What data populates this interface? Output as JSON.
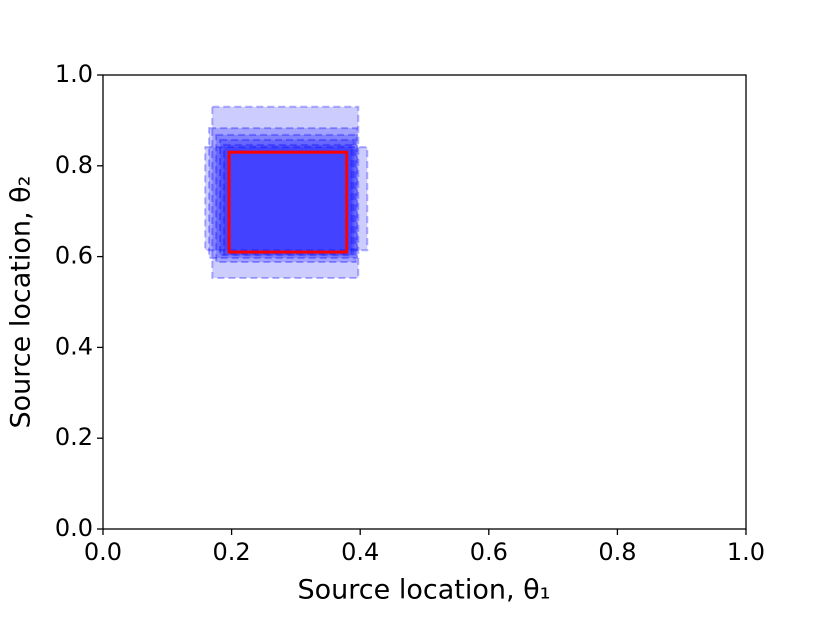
{
  "chart_data": {
    "type": "rect",
    "xlabel": "Source location, θ₁",
    "ylabel": "Source location, θ₂",
    "xlim": [
      0,
      1
    ],
    "ylim": [
      0,
      1
    ],
    "xticks": [
      {
        "value": 0,
        "label": "0.0"
      },
      0.2,
      0.4,
      0.6,
      0.8,
      {
        "value": 1,
        "label": "1.0"
      }
    ],
    "yticks": [
      {
        "value": 0,
        "label": "0.0"
      },
      0.2,
      0.4,
      0.6,
      0.8,
      {
        "value": 1,
        "label": "1.0"
      }
    ],
    "rectangles": {
      "color": "#0000ff",
      "alpha": 0.2,
      "x0": [
        0.17,
        0.159,
        0.165,
        0.176,
        0.182,
        0.188
      ],
      "x1": [
        0.397,
        0.411,
        0.395,
        0.393,
        0.39,
        0.387
      ],
      "y0": [
        0.553,
        0.614,
        0.597,
        0.588,
        0.603,
        0.605
      ],
      "y1": [
        0.93,
        0.841,
        0.883,
        0.868,
        0.857,
        0.846
      ]
    },
    "highlight": {
      "color": "#ff0000",
      "x0": 0.196,
      "x1": 0.379,
      "y0": 0.61,
      "y1": 0.83
    }
  }
}
